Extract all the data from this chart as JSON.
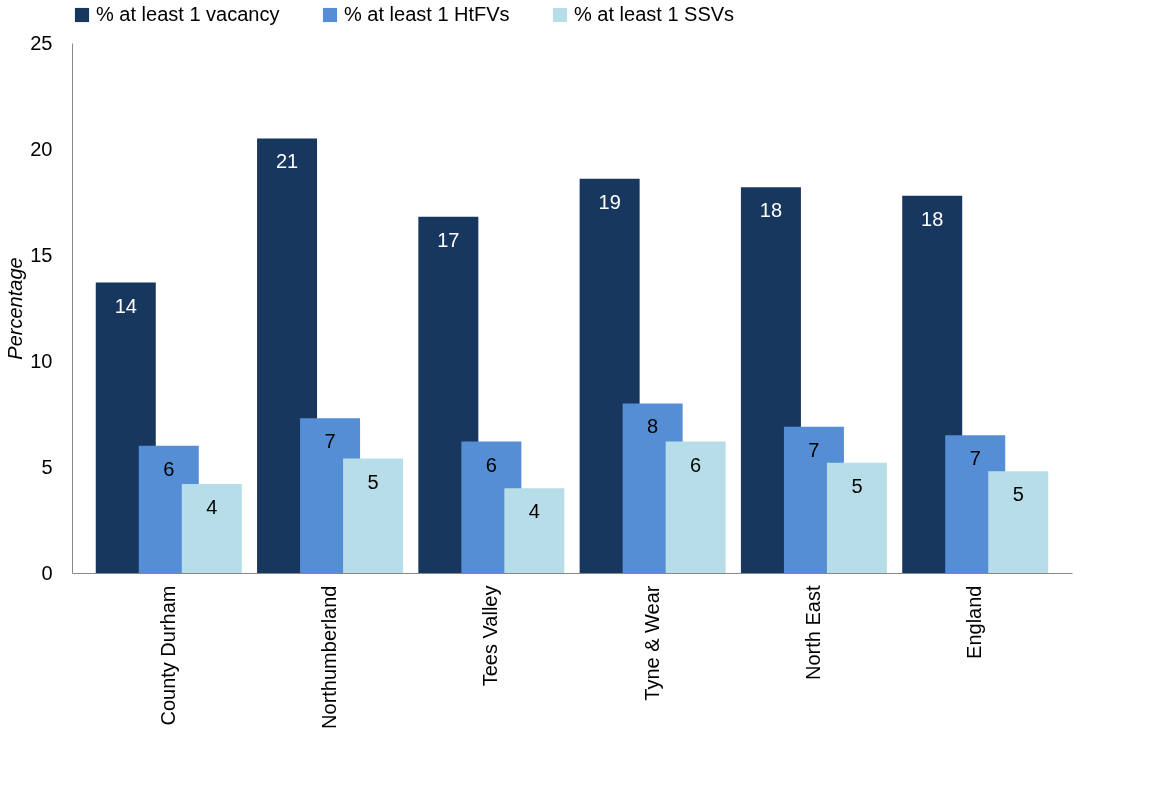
{
  "chart_data": {
    "type": "bar",
    "ylabel": "Percentage",
    "categories": [
      "County Durham",
      "Northumberland",
      "Tees Valley",
      "Tyne & Wear",
      "North East",
      "England"
    ],
    "series": [
      {
        "name": "% at least 1 vacancy",
        "color": "#17375e",
        "values": [
          13.7,
          20.5,
          16.8,
          18.6,
          18.2,
          17.8
        ],
        "value_labels": [
          "14",
          "21",
          "17",
          "19",
          "18",
          "18"
        ]
      },
      {
        "name": "% at least 1 HtFVs",
        "color": "#558ed5",
        "values": [
          6.0,
          7.3,
          6.2,
          8.0,
          6.9,
          6.5
        ],
        "value_labels": [
          "6",
          "7",
          "6",
          "8",
          "7",
          "7"
        ]
      },
      {
        "name": "% at least 1 SSVs",
        "color": "#b7dee8",
        "values": [
          4.2,
          5.4,
          4.0,
          6.2,
          5.2,
          4.8
        ],
        "value_labels": [
          "4",
          "5",
          "4",
          "6",
          "5",
          "5"
        ]
      }
    ],
    "ylim": [
      0,
      25
    ],
    "yticks": [
      0,
      5,
      10,
      15,
      20,
      25
    ],
    "grid": false,
    "legend": "top"
  }
}
